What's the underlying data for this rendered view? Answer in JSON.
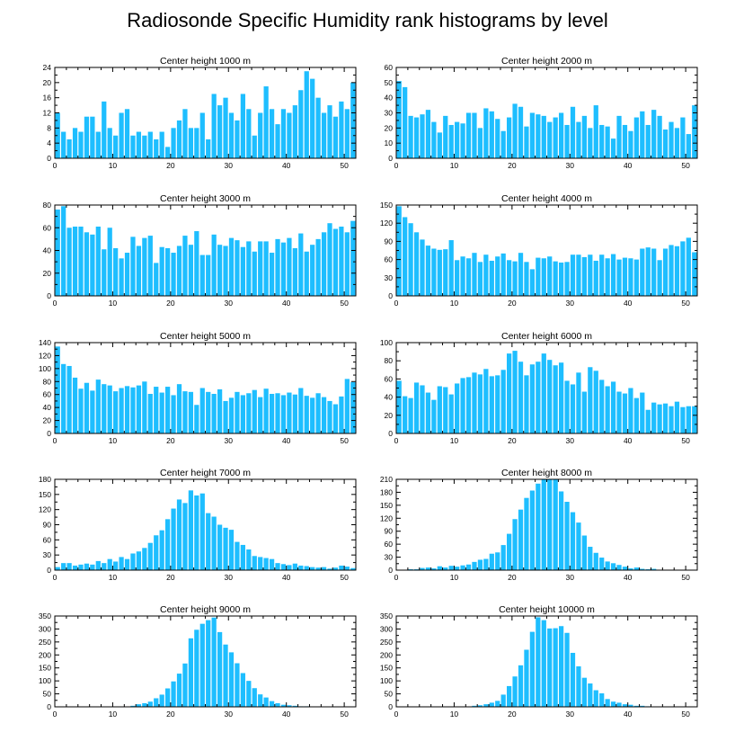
{
  "title": "Radiosonde Specific Humidity rank histograms by level",
  "colors": {
    "bar": "#1ebeff",
    "axis": "#000000"
  },
  "chart_data": [
    {
      "type": "bar",
      "title": "Center height 1000 m",
      "xlim": [
        0,
        52
      ],
      "ylim": [
        0,
        24
      ],
      "xticks": [
        0,
        10,
        20,
        30,
        40,
        50
      ],
      "yticks": [
        0,
        4,
        8,
        12,
        16,
        20,
        24
      ],
      "values": [
        12,
        7,
        5,
        8,
        7,
        11,
        11,
        7,
        15,
        8,
        6,
        12,
        13,
        6,
        7,
        6,
        7,
        5,
        7,
        3,
        8,
        10,
        13,
        8,
        8,
        12,
        5,
        17,
        14,
        16,
        12,
        10,
        17,
        13,
        6,
        12,
        19,
        13,
        9,
        13,
        12,
        14,
        18,
        23,
        21,
        16,
        12,
        14,
        11,
        15,
        13,
        20
      ]
    },
    {
      "type": "bar",
      "title": "Center height 2000 m",
      "xlim": [
        0,
        52
      ],
      "ylim": [
        0,
        60
      ],
      "xticks": [
        0,
        10,
        20,
        30,
        40,
        50
      ],
      "yticks": [
        0,
        10,
        20,
        30,
        40,
        50,
        60
      ],
      "values": [
        51,
        47,
        28,
        27,
        29,
        32,
        24,
        17,
        28,
        22,
        24,
        23,
        30,
        30,
        20,
        33,
        31,
        26,
        18,
        27,
        36,
        34,
        21,
        30,
        29,
        28,
        24,
        27,
        30,
        22,
        34,
        24,
        28,
        20,
        35,
        22,
        21,
        13,
        28,
        22,
        18,
        27,
        31,
        22,
        32,
        28,
        19,
        24,
        20,
        27,
        16,
        35
      ]
    },
    {
      "type": "bar",
      "title": "Center height 3000 m",
      "xlim": [
        0,
        52
      ],
      "ylim": [
        0,
        80
      ],
      "xticks": [
        0,
        10,
        20,
        30,
        40,
        50
      ],
      "yticks": [
        0,
        20,
        40,
        60,
        80
      ],
      "values": [
        76,
        79,
        60,
        61,
        61,
        56,
        54,
        61,
        41,
        60,
        42,
        33,
        38,
        52,
        44,
        51,
        53,
        29,
        43,
        42,
        38,
        44,
        53,
        45,
        57,
        36,
        36,
        54,
        45,
        44,
        51,
        49,
        43,
        48,
        39,
        48,
        48,
        38,
        50,
        47,
        51,
        42,
        55,
        39,
        45,
        50,
        56,
        64,
        59,
        61,
        56,
        66
      ]
    },
    {
      "type": "bar",
      "title": "Center height 4000 m",
      "xlim": [
        0,
        52
      ],
      "ylim": [
        0,
        150
      ],
      "xticks": [
        0,
        10,
        20,
        30,
        40,
        50
      ],
      "yticks": [
        0,
        30,
        60,
        90,
        120,
        150
      ],
      "values": [
        148,
        130,
        120,
        105,
        93,
        83,
        78,
        76,
        77,
        92,
        59,
        65,
        62,
        71,
        56,
        68,
        58,
        65,
        70,
        59,
        57,
        71,
        56,
        44,
        63,
        62,
        65,
        57,
        55,
        56,
        68,
        68,
        64,
        68,
        58,
        68,
        62,
        69,
        60,
        63,
        62,
        60,
        78,
        80,
        78,
        59,
        78,
        84,
        82,
        90,
        96,
        72
      ]
    },
    {
      "type": "bar",
      "title": "Center height 5000 m",
      "xlim": [
        0,
        52
      ],
      "ylim": [
        0,
        140
      ],
      "xticks": [
        0,
        10,
        20,
        30,
        40,
        50
      ],
      "yticks": [
        0,
        20,
        40,
        60,
        80,
        100,
        120,
        140
      ],
      "values": [
        134,
        107,
        104,
        86,
        69,
        78,
        66,
        83,
        76,
        74,
        65,
        70,
        73,
        71,
        74,
        80,
        61,
        72,
        63,
        72,
        59,
        76,
        65,
        64,
        44,
        70,
        64,
        61,
        68,
        50,
        55,
        64,
        59,
        62,
        67,
        56,
        69,
        61,
        62,
        59,
        63,
        60,
        70,
        58,
        55,
        62,
        56,
        50,
        45,
        57,
        84,
        79
      ]
    },
    {
      "type": "bar",
      "title": "Center height 6000 m",
      "xlim": [
        0,
        52
      ],
      "ylim": [
        0,
        100
      ],
      "xticks": [
        0,
        10,
        20,
        30,
        40,
        50
      ],
      "yticks": [
        0,
        20,
        40,
        60,
        80,
        100
      ],
      "values": [
        58,
        41,
        39,
        56,
        53,
        45,
        37,
        52,
        51,
        43,
        55,
        61,
        62,
        67,
        65,
        71,
        63,
        64,
        70,
        88,
        91,
        79,
        64,
        76,
        79,
        88,
        81,
        75,
        78,
        58,
        54,
        67,
        46,
        73,
        69,
        59,
        52,
        57,
        46,
        44,
        50,
        39,
        45,
        26,
        34,
        32,
        33,
        30,
        35,
        29,
        30,
        30
      ]
    },
    {
      "type": "bar",
      "title": "Center height 7000 m",
      "xlim": [
        0,
        52
      ],
      "ylim": [
        0,
        180
      ],
      "xticks": [
        0,
        10,
        20,
        30,
        40,
        50
      ],
      "yticks": [
        0,
        30,
        60,
        90,
        120,
        150,
        180
      ],
      "values": [
        6,
        14,
        14,
        9,
        11,
        13,
        11,
        18,
        14,
        22,
        17,
        26,
        22,
        33,
        37,
        44,
        54,
        69,
        79,
        101,
        122,
        140,
        133,
        158,
        148,
        152,
        113,
        106,
        90,
        84,
        80,
        56,
        50,
        41,
        28,
        26,
        24,
        22,
        14,
        12,
        10,
        13,
        9,
        8,
        6,
        5,
        6,
        3,
        5,
        9,
        7,
        4
      ]
    },
    {
      "type": "bar",
      "title": "Center height 8000 m",
      "xlim": [
        0,
        52
      ],
      "ylim": [
        0,
        210
      ],
      "xticks": [
        0,
        10,
        20,
        30,
        40,
        50
      ],
      "yticks": [
        0,
        30,
        60,
        90,
        120,
        150,
        180,
        210
      ],
      "values": [
        0,
        0,
        2,
        2,
        5,
        6,
        4,
        9,
        6,
        10,
        8,
        11,
        13,
        19,
        24,
        26,
        38,
        41,
        58,
        84,
        118,
        140,
        167,
        184,
        200,
        212,
        212,
        210,
        182,
        158,
        134,
        110,
        80,
        54,
        40,
        29,
        20,
        16,
        12,
        8,
        4,
        6,
        3,
        2,
        3,
        1,
        1,
        1,
        0,
        0,
        0,
        0
      ]
    },
    {
      "type": "bar",
      "title": "Center height 9000 m",
      "xlim": [
        0,
        52
      ],
      "ylim": [
        0,
        350
      ],
      "xticks": [
        0,
        10,
        20,
        30,
        40,
        50
      ],
      "yticks": [
        0,
        50,
        100,
        150,
        200,
        250,
        300,
        350
      ],
      "values": [
        0,
        0,
        0,
        0,
        0,
        0,
        0,
        0,
        0,
        0,
        0,
        0,
        1,
        4,
        10,
        14,
        20,
        33,
        47,
        71,
        98,
        128,
        167,
        264,
        297,
        320,
        334,
        344,
        288,
        240,
        210,
        168,
        130,
        100,
        72,
        48,
        36,
        22,
        14,
        8,
        6,
        4,
        2,
        2,
        1,
        0,
        0,
        0,
        0,
        0,
        0,
        0
      ]
    },
    {
      "type": "bar",
      "title": "Center height 10000 m",
      "xlim": [
        0,
        52
      ],
      "ylim": [
        0,
        350
      ],
      "xticks": [
        0,
        10,
        20,
        30,
        40,
        50
      ],
      "yticks": [
        0,
        50,
        100,
        150,
        200,
        250,
        300,
        350
      ],
      "values": [
        0,
        0,
        0,
        0,
        0,
        0,
        0,
        0,
        0,
        0,
        0,
        0,
        1,
        4,
        6,
        10,
        16,
        23,
        47,
        80,
        117,
        160,
        220,
        289,
        345,
        334,
        302,
        303,
        311,
        285,
        208,
        156,
        112,
        90,
        64,
        52,
        30,
        20,
        16,
        10,
        8,
        4,
        4,
        2,
        1,
        0,
        0,
        0,
        0,
        0,
        0,
        0
      ]
    }
  ]
}
